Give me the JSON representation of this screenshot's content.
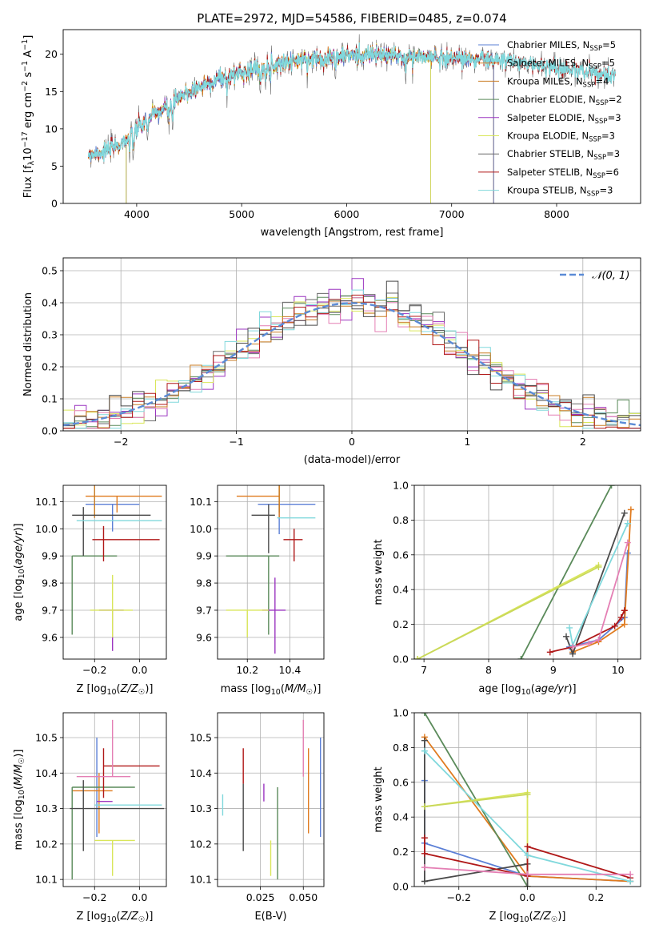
{
  "title": "PLATE=2972, MJD=54586, FIBERID=0485, z=0.074",
  "palette": [
    "#5b7fd6",
    "#e07b1f",
    "#c97d24",
    "#5a8a5a",
    "#9b35c0",
    "#d9e65a",
    "#4a4a4a",
    "#b01818",
    "#80d8dc",
    "#e47fb4",
    "#5fa06a",
    "#c9d85a"
  ],
  "chart_data": [
    {
      "id": "spectrum",
      "type": "line",
      "xlabel": "wavelength [Angstrom, rest frame]",
      "ylabel": "Flux [f_λ 10^-17 erg cm^-2 s^-1 A^-1]",
      "xlim": [
        3300,
        8800
      ],
      "ylim": [
        0,
        23.3
      ],
      "xticks": [
        4000,
        5000,
        6000,
        7000,
        8000
      ],
      "yticks": [
        0,
        5,
        10,
        15,
        20
      ],
      "grid": false,
      "legend": "upper-right",
      "continuum_knots": {
        "x": [
          3520,
          3700,
          3850,
          3950,
          4100,
          4300,
          4500,
          4800,
          5100,
          5400,
          5700,
          6000,
          6300,
          6600,
          6900,
          7200,
          7500,
          7800,
          8100,
          8400,
          8560
        ],
        "y": [
          6.5,
          7.0,
          8.0,
          9.2,
          11.3,
          13.0,
          15.0,
          16.8,
          18.0,
          18.9,
          19.4,
          19.8,
          19.9,
          19.7,
          19.6,
          19.4,
          19.1,
          18.6,
          18.0,
          17.4,
          16.8
        ]
      },
      "series": [
        {
          "name": "Chabrier MILES, N_SSP=5",
          "label_main": "Chabrier MILES, N",
          "label_sub": "SSP",
          "label_tail": "=5",
          "xrange": [
            3540,
            7400
          ]
        },
        {
          "name": "Salpeter MILES, N_SSP=5",
          "label_main": "Salpeter MILES, N",
          "label_sub": "SSP",
          "label_tail": "=5",
          "xrange": [
            3540,
            7400
          ]
        },
        {
          "name": "Kroupa MILES, N_SSP=4",
          "label_main": "Kroupa MILES, N",
          "label_sub": "SSP",
          "label_tail": "=4",
          "xrange": [
            3540,
            7400
          ]
        },
        {
          "name": "Chabrier ELODIE, N_SSP=2",
          "label_main": "Chabrier ELODIE, N",
          "label_sub": "SSP",
          "label_tail": "=2",
          "xrange": [
            3900,
            6800
          ]
        },
        {
          "name": "Salpeter ELODIE, N_SSP=3",
          "label_main": "Salpeter ELODIE, N",
          "label_sub": "SSP",
          "label_tail": "=3",
          "xrange": [
            3900,
            6800
          ]
        },
        {
          "name": "Kroupa ELODIE, N_SSP=3",
          "label_main": "Kroupa ELODIE, N",
          "label_sub": "SSP",
          "label_tail": "=3",
          "xrange": [
            3900,
            6800
          ]
        },
        {
          "name": "Chabrier STELIB, N_SSP=3",
          "label_main": "Chabrier STELIB, N",
          "label_sub": "SSP",
          "label_tail": "=3",
          "xrange": [
            3540,
            8560
          ]
        },
        {
          "name": "Salpeter STELIB, N_SSP=6",
          "label_main": "Salpeter STELIB, N",
          "label_sub": "SSP",
          "label_tail": "=6",
          "xrange": [
            3540,
            8560
          ]
        },
        {
          "name": "Kroupa STELIB, N_SSP=3",
          "label_main": "Kroupa STELIB, N",
          "label_sub": "SSP",
          "label_tail": "=3",
          "xrange": [
            3540,
            8560
          ]
        }
      ]
    },
    {
      "id": "residuals",
      "type": "histogram",
      "xlabel": "(data-model)/error",
      "ylabel": "Normed distribution",
      "xlim": [
        -2.5,
        2.5
      ],
      "ylim": [
        0,
        0.54
      ],
      "xticks": [
        -2,
        -1,
        0,
        1,
        2
      ],
      "yticks": [
        0.0,
        0.1,
        0.2,
        0.3,
        0.4,
        0.5
      ],
      "grid": true,
      "legend": "upper-right",
      "bin_width": 0.1,
      "reference_curve": {
        "name": "N(0,1)",
        "label": "𝒩(0, 1)",
        "mean": 0,
        "sigma": 1,
        "color": "#5b8bd6",
        "style": "dashed"
      },
      "notes": "nine step histograms, one per model, following the Gaussian with scatter; peak values about 0.45-0.52 near x = 0.3"
    },
    {
      "id": "age_vs_Z",
      "type": "errorbar",
      "xlabel": "Z [log10(Z/Z☉)]",
      "ylabel": "age [log10(age/yr)]",
      "xlim": [
        -0.34,
        0.12
      ],
      "ylim": [
        9.52,
        10.16
      ],
      "xticks": [
        -0.2,
        0.0
      ],
      "yticks": [
        9.6,
        9.7,
        9.8,
        9.9,
        10.0,
        10.1
      ],
      "grid": true,
      "points": [
        {
          "model": 0,
          "x": -0.12,
          "y": 10.09,
          "xerr": [
            0.12,
            0.12
          ],
          "yerr": [
            0.1,
            0.0
          ]
        },
        {
          "model": 1,
          "x": -0.1,
          "y": 10.12,
          "xerr": [
            0.14,
            0.2
          ],
          "yerr": [
            0.06,
            0.0
          ]
        },
        {
          "model": 2,
          "x": -0.2,
          "y": 10.12,
          "xerr": [
            0.0,
            0.0
          ],
          "yerr": [
            0.08,
            0.05
          ]
        },
        {
          "model": 3,
          "x": -0.3,
          "y": 9.9,
          "xerr": [
            0.0,
            0.2
          ],
          "yerr": [
            0.29,
            0.0
          ]
        },
        {
          "model": 4,
          "x": -0.12,
          "y": 9.7,
          "xerr": [
            0.06,
            0.05
          ],
          "yerr": [
            0.15,
            0.0
          ]
        },
        {
          "model": 5,
          "x": -0.12,
          "y": 9.7,
          "xerr": [
            0.1,
            0.09
          ],
          "yerr": [
            0.1,
            0.13
          ]
        },
        {
          "model": 6,
          "x": -0.25,
          "y": 10.05,
          "xerr": [
            0.05,
            0.3
          ],
          "yerr": [
            0.15,
            0.03
          ]
        },
        {
          "model": 7,
          "x": -0.16,
          "y": 9.96,
          "xerr": [
            0.05,
            0.25
          ],
          "yerr": [
            0.08,
            0.05
          ]
        },
        {
          "model": 8,
          "x": -0.18,
          "y": 10.03,
          "xerr": [
            0.1,
            0.28
          ],
          "yerr": [
            0.0,
            0.0
          ]
        }
      ]
    },
    {
      "id": "age_vs_mass",
      "type": "errorbar",
      "xlabel": "mass [log10(M/M☉)]",
      "ylabel": "",
      "xlim": [
        10.06,
        10.56
      ],
      "ylim": [
        9.52,
        10.16
      ],
      "xticks": [
        10.2,
        10.4
      ],
      "yticks": [
        9.6,
        9.7,
        9.8,
        9.9,
        10.0,
        10.1
      ],
      "grid": true,
      "points": [
        {
          "model": 0,
          "x": 10.35,
          "y": 10.09,
          "xerr": [
            0.1,
            0.17
          ],
          "yerr": [
            0.11,
            0.0
          ]
        },
        {
          "model": 1,
          "x": 10.35,
          "y": 10.12,
          "xerr": [
            0.2,
            0.0
          ],
          "yerr": [
            0.08,
            0.04
          ]
        },
        {
          "model": 2,
          "x": 10.35,
          "y": 10.12,
          "xerr": [
            0.0,
            0.0
          ],
          "yerr": [
            0.06,
            0.04
          ]
        },
        {
          "model": 3,
          "x": 10.3,
          "y": 9.9,
          "xerr": [
            0.2,
            0.05
          ],
          "yerr": [
            0.29,
            0.0
          ]
        },
        {
          "model": 4,
          "x": 10.33,
          "y": 9.7,
          "xerr": [
            0.06,
            0.05
          ],
          "yerr": [
            0.16,
            0.12
          ]
        },
        {
          "model": 5,
          "x": 10.2,
          "y": 9.7,
          "xerr": [
            0.1,
            0.1
          ],
          "yerr": [
            0.1,
            0.0
          ]
        },
        {
          "model": 6,
          "x": 10.3,
          "y": 10.05,
          "xerr": [
            0.08,
            0.03
          ],
          "yerr": [
            0.14,
            0.04
          ]
        },
        {
          "model": 7,
          "x": 10.42,
          "y": 9.96,
          "xerr": [
            0.05,
            0.04
          ],
          "yerr": [
            0.08,
            0.04
          ]
        },
        {
          "model": 8,
          "x": 10.34,
          "y": 10.04,
          "xerr": [
            0.0,
            0.18
          ],
          "yerr": [
            0.0,
            0.0
          ]
        }
      ]
    },
    {
      "id": "weight_vs_age",
      "type": "line",
      "xlabel": "age [log10(age/yr)]",
      "ylabel": "mass weight",
      "xlim": [
        6.85,
        10.35
      ],
      "ylim": [
        0,
        1.0
      ],
      "xticks": [
        7,
        8,
        9,
        10
      ],
      "yticks": [
        0.0,
        0.2,
        0.4,
        0.6,
        0.8,
        1.0
      ],
      "grid": true,
      "series": [
        {
          "model": 0,
          "x": [
            9.25,
            9.7,
            10.1,
            10.15
          ],
          "y": [
            0.07,
            0.11,
            0.24,
            0.61
          ]
        },
        {
          "model": 1,
          "x": [
            9.3,
            9.7,
            10.1,
            10.2
          ],
          "y": [
            0.04,
            0.1,
            0.2,
            0.86
          ]
        },
        {
          "model": 3,
          "x": [
            8.5,
            9.9
          ],
          "y": [
            0.0,
            1.0
          ]
        },
        {
          "model": 5,
          "x": [
            6.9,
            9.7
          ],
          "y": [
            0.0,
            0.54
          ]
        },
        {
          "model": 6,
          "x": [
            9.2,
            9.3,
            10.1
          ],
          "y": [
            0.13,
            0.03,
            0.84
          ]
        },
        {
          "model": 7,
          "x": [
            8.95,
            9.3,
            9.95,
            10.05,
            10.1
          ],
          "y": [
            0.04,
            0.07,
            0.19,
            0.24,
            0.28
          ]
        },
        {
          "model": 8,
          "x": [
            9.25,
            9.3,
            10.15
          ],
          "y": [
            0.18,
            0.08,
            0.78
          ]
        },
        {
          "model": 9,
          "x": [
            9.3,
            9.55,
            9.7,
            10.15
          ],
          "y": [
            0.07,
            0.09,
            0.11,
            0.67
          ]
        },
        {
          "model": 11,
          "x": [
            6.9,
            9.7
          ],
          "y": [
            0.0,
            0.53
          ]
        }
      ]
    },
    {
      "id": "mass_vs_Z",
      "type": "errorbar",
      "xlabel": "Z [log10(Z/Z☉)]",
      "ylabel": "mass [log10(M/M☉)]",
      "xlim": [
        -0.34,
        0.12
      ],
      "ylim": [
        10.08,
        10.57
      ],
      "xticks": [
        -0.2,
        0.0
      ],
      "yticks": [
        10.1,
        10.2,
        10.3,
        10.4,
        10.5
      ],
      "grid": true,
      "points": [
        {
          "model": 0,
          "x": -0.19,
          "y": 10.34,
          "xerr": [
            0.0,
            0.0
          ],
          "yerr": [
            0.12,
            0.16
          ]
        },
        {
          "model": 1,
          "x": -0.18,
          "y": 10.35,
          "xerr": [
            0.12,
            0.06
          ],
          "yerr": [
            0.12,
            0.05
          ]
        },
        {
          "model": 3,
          "x": -0.3,
          "y": 10.36,
          "xerr": [
            0.0,
            0.28
          ],
          "yerr": [
            0.26,
            0.0
          ]
        },
        {
          "model": 4,
          "x": -0.12,
          "y": 10.32,
          "xerr": [
            0.07,
            0.0
          ],
          "yerr": [
            0.0,
            0.0
          ]
        },
        {
          "model": 5,
          "x": -0.12,
          "y": 10.21,
          "xerr": [
            0.08,
            0.1
          ],
          "yerr": [
            0.1,
            0.0
          ]
        },
        {
          "model": 6,
          "x": -0.25,
          "y": 10.3,
          "xerr": [
            0.06,
            0.36
          ],
          "yerr": [
            0.12,
            0.08
          ]
        },
        {
          "model": 7,
          "x": -0.16,
          "y": 10.42,
          "xerr": [
            0.0,
            0.25
          ],
          "yerr": [
            0.09,
            0.05
          ]
        },
        {
          "model": 8,
          "x": -0.2,
          "y": 10.31,
          "xerr": [
            0.0,
            0.3
          ],
          "yerr": [
            0.0,
            0.0
          ]
        },
        {
          "model": 9,
          "x": -0.12,
          "y": 10.39,
          "xerr": [
            0.16,
            0.08
          ],
          "yerr": [
            0.0,
            0.16
          ]
        }
      ]
    },
    {
      "id": "mass_vs_EBV",
      "type": "errorbar",
      "xlabel": "E(B-V)",
      "ylabel": "",
      "xlim": [
        0.0,
        0.062
      ],
      "ylim": [
        10.08,
        10.57
      ],
      "xticks": [
        0.025,
        0.05
      ],
      "yticks": [
        10.1,
        10.2,
        10.3,
        10.4,
        10.5
      ],
      "grid": true,
      "points": [
        {
          "model": 8,
          "x": 0.003,
          "y": 10.31,
          "xerr": [
            0.0,
            0.0
          ],
          "yerr": [
            0.03,
            0.03
          ]
        },
        {
          "model": 7,
          "x": 0.015,
          "y": 10.42,
          "xerr": [
            0.0,
            0.0
          ],
          "yerr": [
            0.05,
            0.05
          ]
        },
        {
          "model": 6,
          "x": 0.015,
          "y": 10.3,
          "xerr": [
            0.0,
            0.0
          ],
          "yerr": [
            0.12,
            0.07
          ]
        },
        {
          "model": 4,
          "x": 0.027,
          "y": 10.32,
          "xerr": [
            0.0,
            0.0
          ],
          "yerr": [
            0.0,
            0.05
          ]
        },
        {
          "model": 5,
          "x": 0.031,
          "y": 10.21,
          "xerr": [
            0.0,
            0.0
          ],
          "yerr": [
            0.1,
            0.0
          ]
        },
        {
          "model": 3,
          "x": 0.035,
          "y": 10.36,
          "xerr": [
            0.0,
            0.0
          ],
          "yerr": [
            0.26,
            0.0
          ]
        },
        {
          "model": 9,
          "x": 0.05,
          "y": 10.39,
          "xerr": [
            0.0,
            0.0
          ],
          "yerr": [
            0.0,
            0.16
          ]
        },
        {
          "model": 1,
          "x": 0.053,
          "y": 10.35,
          "xerr": [
            0.0,
            0.0
          ],
          "yerr": [
            0.12,
            0.12
          ]
        },
        {
          "model": 0,
          "x": 0.06,
          "y": 10.34,
          "xerr": [
            0.0,
            0.0
          ],
          "yerr": [
            0.12,
            0.16
          ]
        }
      ]
    },
    {
      "id": "weight_vs_Z",
      "type": "line",
      "xlabel": "Z [log10(Z/Z☉)]",
      "ylabel": "mass weight",
      "xlim": [
        -0.33,
        0.33
      ],
      "ylim": [
        0,
        1.0
      ],
      "xticks": [
        -0.2,
        0.0,
        0.2
      ],
      "yticks": [
        0.0,
        0.2,
        0.4,
        0.6,
        0.8,
        1.0
      ],
      "grid": true,
      "series": [
        {
          "model": 0,
          "x": [
            -0.3,
            -0.3,
            0.0,
            0.3
          ],
          "y": [
            0.61,
            0.25,
            0.06,
            0.03
          ]
        },
        {
          "model": 1,
          "x": [
            -0.3,
            0.0,
            0.3
          ],
          "y": [
            0.86,
            0.06,
            0.03
          ]
        },
        {
          "model": 3,
          "x": [
            -0.3,
            0.0
          ],
          "y": [
            1.0,
            0.0
          ]
        },
        {
          "model": 5,
          "x": [
            -0.3,
            0.0,
            0.0
          ],
          "y": [
            0.46,
            0.54,
            0.0
          ]
        },
        {
          "model": 6,
          "x": [
            -0.3,
            -0.3,
            0.0,
            0.0
          ],
          "y": [
            0.84,
            0.03,
            0.13,
            0.0
          ]
        },
        {
          "model": 7,
          "x": [
            -0.3,
            -0.3,
            0.0,
            0.0,
            0.3
          ],
          "y": [
            0.28,
            0.19,
            0.06,
            0.23,
            0.05
          ]
        },
        {
          "model": 8,
          "x": [
            -0.3,
            0.0,
            0.3
          ],
          "y": [
            0.78,
            0.18,
            0.03
          ]
        },
        {
          "model": 9,
          "x": [
            -0.3,
            0.0,
            0.3
          ],
          "y": [
            0.11,
            0.07,
            0.07
          ]
        },
        {
          "model": 11,
          "x": [
            -0.3,
            0.0
          ],
          "y": [
            0.46,
            0.53
          ]
        }
      ]
    }
  ]
}
